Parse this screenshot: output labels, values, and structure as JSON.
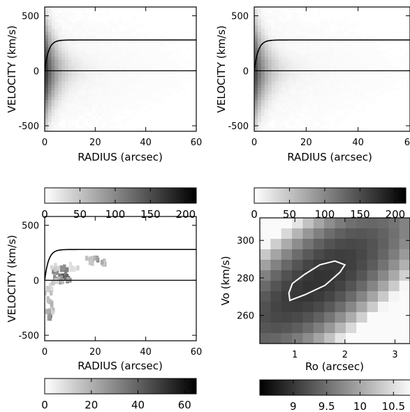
{
  "chart_data": [
    {
      "type": "heatmap",
      "panel": "top-left",
      "xlabel": "RADIUS (arcsec)",
      "ylabel": "VELOCITY (km/s)",
      "xlim": [
        0,
        60
      ],
      "ylim": [
        -550,
        580
      ],
      "xticks": [
        "0",
        "20",
        "40",
        "60"
      ],
      "yticks": [
        "-500",
        "0",
        "500"
      ],
      "curve": {
        "vmax": 280,
        "rscale": 1.5
      },
      "zero_line": 0,
      "colorbar": {
        "ticks": [
          "0",
          "50",
          "100",
          "150",
          "200"
        ],
        "range": [
          0,
          215
        ],
        "colormap": "white-to-black"
      }
    },
    {
      "type": "heatmap",
      "panel": "top-right",
      "xlabel": "RADIUS (arcsec)",
      "ylabel": "VELOCITY (km/s)",
      "xlim": [
        0,
        60
      ],
      "ylim": [
        -550,
        580
      ],
      "xticks": [
        "0",
        "20",
        "40",
        "60"
      ],
      "yticks": [
        "-500",
        "0",
        "500"
      ],
      "curve": {
        "vmax": 280,
        "rscale": 1.5
      },
      "zero_line": 0,
      "colorbar": {
        "ticks": [
          "0",
          "50",
          "100",
          "150",
          "200"
        ],
        "range": [
          0,
          215
        ],
        "colormap": "white-to-black"
      }
    },
    {
      "type": "heatmap",
      "panel": "bottom-left",
      "xlabel": "RADIUS (arcsec)",
      "ylabel": "VELOCITY (km/s)",
      "xlim": [
        0,
        60
      ],
      "ylim": [
        -550,
        580
      ],
      "xticks": [
        "0",
        "20",
        "40",
        "60"
      ],
      "yticks": [
        "-500",
        "0",
        "500"
      ],
      "curve": {
        "vmax": 280,
        "rscale": 1.5
      },
      "zero_line": 0,
      "colorbar": {
        "ticks": [
          "0",
          "20",
          "40",
          "60"
        ],
        "range": [
          0,
          65
        ],
        "colormap": "white-to-black"
      }
    },
    {
      "type": "heatmap",
      "panel": "bottom-right",
      "xlabel": "Ro (arcsec)",
      "ylabel": "Vo (km/s)",
      "xlim": [
        0.3,
        3.3
      ],
      "ylim": [
        245,
        312
      ],
      "xticks": [
        "1",
        "2",
        "3"
      ],
      "yticks": [
        "260",
        "280",
        "300"
      ],
      "contour": [
        [
          0.9,
          268
        ],
        [
          1.2,
          271
        ],
        [
          1.6,
          276
        ],
        [
          1.9,
          283
        ],
        [
          2.0,
          287
        ],
        [
          1.8,
          289
        ],
        [
          1.5,
          287
        ],
        [
          1.2,
          282
        ],
        [
          0.95,
          277
        ],
        [
          0.88,
          272
        ]
      ],
      "colorbar": {
        "ticks": [
          "9",
          "9.5",
          "10",
          "10.5"
        ],
        "range": [
          8.5,
          10.8
        ],
        "colormap": "black-to-white"
      }
    }
  ]
}
